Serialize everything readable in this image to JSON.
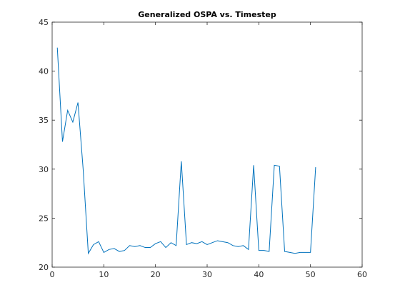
{
  "chart_data": {
    "type": "line",
    "title": "Generalized OSPA vs. Timestep",
    "xlabel": "",
    "ylabel": "",
    "xlim": [
      0,
      60
    ],
    "ylim": [
      20,
      45
    ],
    "xticks": [
      "0",
      "10",
      "20",
      "30",
      "40",
      "50",
      "60"
    ],
    "yticks": [
      "20",
      "25",
      "30",
      "35",
      "40",
      "45"
    ],
    "grid": false,
    "legend": "none",
    "line_color": "#0072bd",
    "series": [
      {
        "x": [
          1,
          2,
          3,
          4,
          5,
          6,
          7,
          8,
          9,
          10,
          11,
          12,
          13,
          14,
          15,
          16,
          17,
          18,
          19,
          20,
          21,
          22,
          23,
          24,
          25,
          26,
          27,
          28,
          29,
          30,
          31,
          32,
          33,
          34,
          35,
          36,
          37,
          38,
          39,
          40,
          41,
          42,
          43,
          44,
          45,
          46,
          47,
          48,
          49,
          50,
          51
        ],
        "values": [
          42.4,
          32.8,
          36.0,
          34.8,
          36.8,
          30.0,
          21.4,
          22.3,
          22.6,
          21.5,
          21.8,
          21.9,
          21.6,
          21.7,
          22.2,
          22.1,
          22.2,
          22.0,
          22.0,
          22.4,
          22.6,
          22.0,
          22.5,
          22.2,
          30.8,
          22.3,
          22.5,
          22.4,
          22.6,
          22.3,
          22.5,
          22.7,
          22.6,
          22.5,
          22.2,
          22.1,
          22.2,
          21.8,
          30.4,
          21.7,
          21.7,
          21.6,
          30.4,
          30.3,
          21.6,
          21.5,
          21.4,
          21.5,
          21.5,
          21.5,
          30.2
        ]
      }
    ]
  }
}
